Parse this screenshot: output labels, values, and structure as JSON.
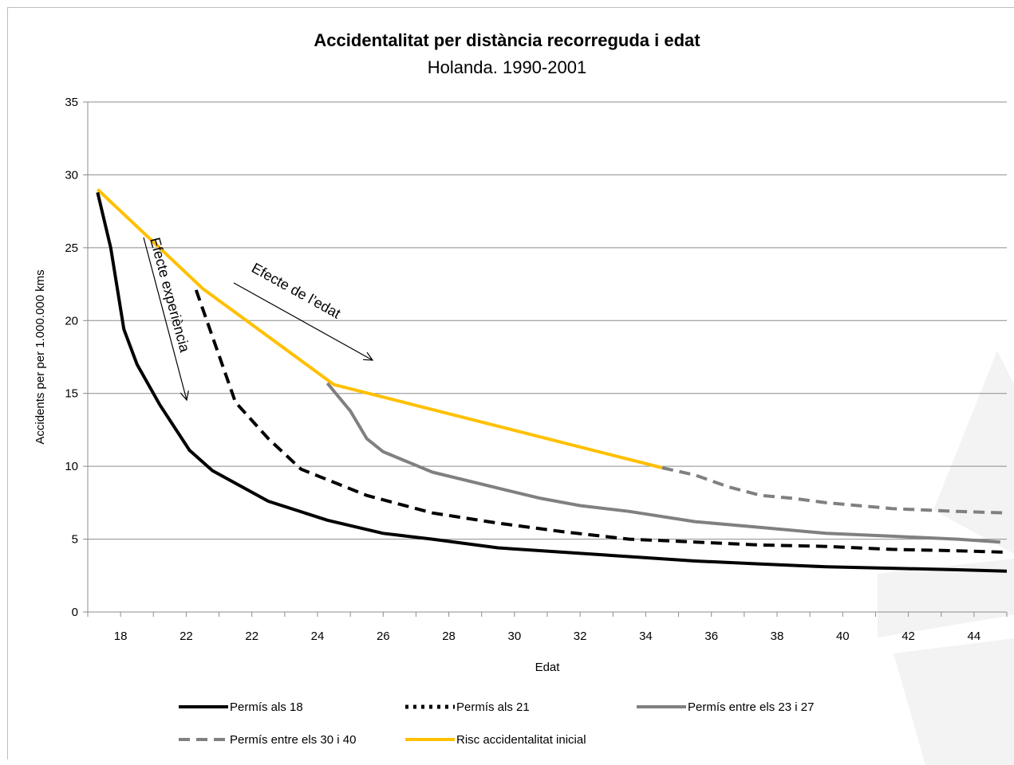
{
  "chart_data": {
    "type": "line",
    "title": "Accidentalitat per distància recorreguda i edat",
    "subtitle": "Holanda.  1990-2001",
    "xlabel": "Edat",
    "ylabel": "Accidents per per 1.000.000 kms",
    "ylim": [
      0,
      35
    ],
    "yticks": [
      0,
      5,
      10,
      15,
      20,
      25,
      30,
      35
    ],
    "categories": [
      "18",
      "22",
      "22",
      "24",
      "26",
      "28",
      "30",
      "32",
      "34",
      "36",
      "38",
      "40",
      "42",
      "44"
    ],
    "xlim": [
      17.5,
      45.5
    ],
    "grid": true,
    "legend_position": "bottom",
    "series": [
      {
        "name": "Permís als 18",
        "color": "#000000",
        "style": "solid",
        "x": [
          17.8,
          18.2,
          18.6,
          19.0,
          19.7,
          20.6,
          21.3,
          23.0,
          24.8,
          26.5,
          28.0,
          30.0,
          32.0,
          34.0,
          36.0,
          38.0,
          40.0,
          42.0,
          44.0,
          45.5
        ],
        "y": [
          28.8,
          25.0,
          19.4,
          17.0,
          14.2,
          11.1,
          9.7,
          7.6,
          6.3,
          5.4,
          5.0,
          4.4,
          4.1,
          3.8,
          3.5,
          3.3,
          3.1,
          3.0,
          2.9,
          2.8
        ]
      },
      {
        "name": "Permís als 21",
        "color": "#000000",
        "style": "dashed",
        "x": [
          20.8,
          21.5,
          22.0,
          23.0,
          24.0,
          26.0,
          28.0,
          30.0,
          32.0,
          34.0,
          36.0,
          38.0,
          40.0,
          42.0,
          44.0,
          45.5
        ],
        "y": [
          22.1,
          17.6,
          14.4,
          11.9,
          9.8,
          8.0,
          6.8,
          6.1,
          5.5,
          5.0,
          4.8,
          4.6,
          4.5,
          4.3,
          4.2,
          4.1
        ]
      },
      {
        "name": "Permís entre els 23 i 27",
        "color": "#808080",
        "style": "solid",
        "x": [
          24.8,
          25.5,
          26.0,
          26.5,
          28.0,
          30.0,
          31.3,
          32.5,
          34.0,
          36.0,
          38.0,
          40.0,
          42.0,
          44.0,
          45.3
        ],
        "y": [
          15.7,
          13.8,
          11.9,
          11.0,
          9.6,
          8.5,
          7.8,
          7.3,
          6.9,
          6.2,
          5.8,
          5.4,
          5.2,
          5.0,
          4.8
        ]
      },
      {
        "name": "Permís entre els 30 i 40",
        "color": "#808080",
        "style": "dashed",
        "x": [
          35.0,
          36.0,
          37.0,
          38.0,
          39.0,
          40.0,
          42.0,
          44.0,
          45.5
        ],
        "y": [
          9.9,
          9.4,
          8.6,
          8.0,
          7.8,
          7.5,
          7.1,
          6.9,
          6.8
        ]
      },
      {
        "name": "Risc accidentalitat inicial",
        "color": "#FFC000",
        "style": "solid",
        "x": [
          17.8,
          21.0,
          25.0,
          35.0
        ],
        "y": [
          29.0,
          22.2,
          15.6,
          9.9
        ]
      }
    ],
    "annotations": [
      {
        "text": "Efecte experiència"
      },
      {
        "text": "Efecte de l’edat"
      }
    ]
  }
}
